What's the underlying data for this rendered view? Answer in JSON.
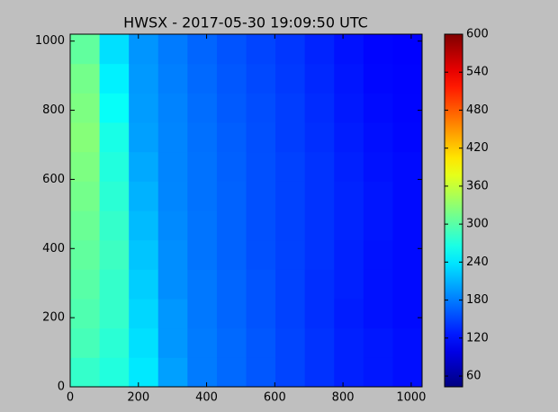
{
  "chart_data": {
    "type": "heatmap",
    "title": "HWSX - 2017-05-30 19:09:50 UTC",
    "colormap": "jet",
    "x_edges": [
      0,
      86,
      172,
      258,
      344,
      430,
      516,
      602,
      688,
      774,
      860,
      946,
      1032
    ],
    "y_edges": [
      0,
      85,
      170,
      255,
      340,
      425,
      510,
      595,
      680,
      765,
      850,
      935,
      1020
    ],
    "z": [
      [
        280,
        270,
        240,
        200,
        180,
        170,
        160,
        150,
        140,
        130,
        125,
        120
      ],
      [
        290,
        275,
        235,
        195,
        180,
        170,
        160,
        150,
        140,
        130,
        125,
        120
      ],
      [
        295,
        280,
        230,
        195,
        178,
        168,
        158,
        148,
        138,
        128,
        122,
        118
      ],
      [
        300,
        280,
        225,
        190,
        178,
        168,
        158,
        148,
        138,
        130,
        122,
        118
      ],
      [
        305,
        285,
        220,
        190,
        176,
        166,
        156,
        148,
        140,
        130,
        122,
        118
      ],
      [
        310,
        280,
        215,
        188,
        176,
        166,
        156,
        148,
        140,
        132,
        124,
        118
      ],
      [
        315,
        275,
        210,
        186,
        175,
        166,
        156,
        148,
        140,
        132,
        124,
        118
      ],
      [
        320,
        270,
        205,
        185,
        175,
        165,
        156,
        148,
        140,
        130,
        122,
        118
      ],
      [
        325,
        265,
        200,
        185,
        174,
        164,
        155,
        146,
        138,
        128,
        120,
        116
      ],
      [
        320,
        255,
        198,
        184,
        172,
        162,
        154,
        146,
        136,
        126,
        118,
        115
      ],
      [
        315,
        245,
        196,
        182,
        170,
        160,
        152,
        144,
        134,
        124,
        116,
        114
      ],
      [
        305,
        235,
        194,
        180,
        168,
        158,
        150,
        142,
        132,
        122,
        115,
        113
      ]
    ],
    "xlim": [
      0,
      1032
    ],
    "ylim": [
      0,
      1020
    ],
    "xticks": [
      0,
      200,
      400,
      600,
      800,
      1000
    ],
    "yticks": [
      0,
      200,
      400,
      600,
      800,
      1000
    ],
    "clim": [
      43,
      600
    ],
    "cticks": [
      60,
      120,
      180,
      240,
      300,
      360,
      420,
      480,
      540,
      600
    ]
  }
}
